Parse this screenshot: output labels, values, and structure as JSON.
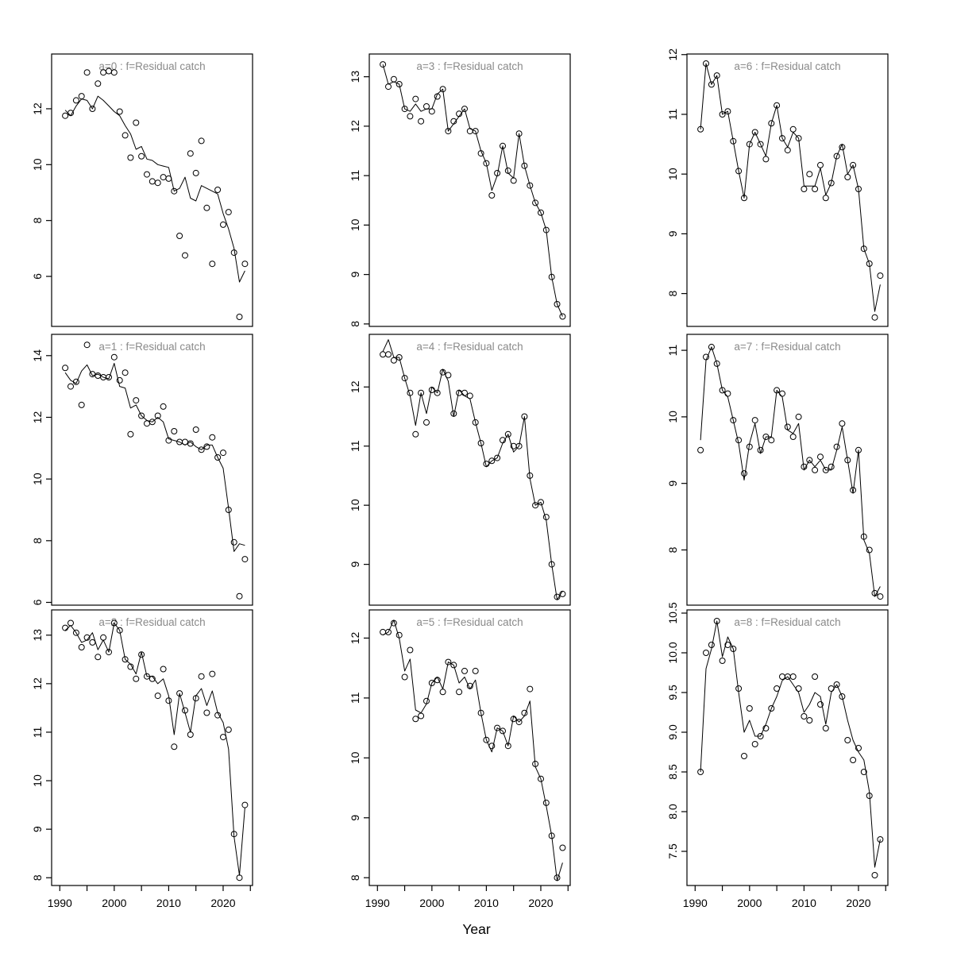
{
  "figure": {
    "xlabel": "Year",
    "background": "#ffffff",
    "axis_color": "#000000",
    "title_color": "#8a8a8a",
    "marker": "open-circle",
    "x_axis": {
      "lim": [
        1988.5,
        2025.4
      ],
      "major_ticks": [
        1990,
        2000,
        2010,
        2020
      ],
      "major_tick_labels": [
        "1990",
        "2000",
        "2010",
        "2020"
      ],
      "minor_ticks": [
        1995,
        2005,
        2015,
        2025
      ],
      "labels_on_bottom_row_only": true
    },
    "years": [
      1991,
      1992,
      1993,
      1994,
      1995,
      1996,
      1997,
      1998,
      1999,
      2000,
      2001,
      2002,
      2003,
      2004,
      2005,
      2006,
      2007,
      2008,
      2009,
      2010,
      2011,
      2012,
      2013,
      2014,
      2015,
      2016,
      2017,
      2018,
      2019,
      2020,
      2021,
      2022,
      2023,
      2024
    ]
  },
  "chart_data": [
    {
      "id": "a0",
      "type": "line",
      "title": "a=0 : f=Residual catch",
      "row": 0,
      "col": 0,
      "ylim": [
        4.21,
        13.96
      ],
      "yticks": [
        6,
        8,
        10,
        12
      ],
      "ytick_labels": [
        "6",
        "8",
        "10",
        "12"
      ],
      "series": [
        {
          "name": "observed",
          "values": [
            11.75,
            11.85,
            12.3,
            12.45,
            13.3,
            12.0,
            12.9,
            13.3,
            13.35,
            13.3,
            11.9,
            11.05,
            10.25,
            11.5,
            10.3,
            9.65,
            9.4,
            9.35,
            9.55,
            9.5,
            9.05,
            7.45,
            6.75,
            10.4,
            9.7,
            10.85,
            8.45,
            6.45,
            9.1,
            7.85,
            8.3,
            6.85,
            4.55,
            6.45
          ]
        },
        {
          "name": "fitted",
          "values": [
            11.95,
            11.75,
            12.1,
            12.35,
            12.3,
            12.0,
            12.45,
            12.3,
            12.1,
            11.9,
            11.75,
            11.4,
            11.1,
            10.55,
            10.65,
            10.2,
            10.15,
            10.0,
            9.95,
            9.9,
            9.05,
            9.15,
            9.55,
            8.8,
            8.7,
            9.25,
            9.15,
            9.05,
            8.95,
            8.25,
            7.7,
            7.0,
            5.8,
            6.2
          ]
        }
      ]
    },
    {
      "id": "a3",
      "type": "line",
      "title": "a=3 : f=Residual catch",
      "row": 0,
      "col": 1,
      "ylim": [
        7.95,
        13.46
      ],
      "yticks": [
        8,
        9,
        10,
        11,
        12,
        13
      ],
      "ytick_labels": [
        "8",
        "9",
        "10",
        "11",
        "12",
        "13"
      ],
      "series": [
        {
          "name": "observed",
          "values": [
            13.25,
            12.8,
            12.95,
            12.85,
            12.35,
            12.2,
            12.55,
            12.1,
            12.4,
            12.3,
            12.6,
            12.75,
            11.9,
            12.1,
            12.25,
            12.35,
            11.9,
            11.9,
            11.45,
            11.25,
            10.6,
            11.05,
            11.6,
            11.1,
            10.9,
            11.85,
            11.2,
            10.8,
            10.45,
            10.25,
            9.9,
            8.95,
            8.4,
            8.15
          ]
        },
        {
          "name": "fitted",
          "values": [
            13.25,
            12.85,
            12.9,
            12.85,
            12.35,
            12.3,
            12.45,
            12.3,
            12.35,
            12.35,
            12.65,
            12.75,
            11.9,
            12.05,
            12.2,
            12.35,
            11.95,
            11.9,
            11.5,
            11.25,
            10.7,
            11.0,
            11.6,
            11.05,
            10.95,
            11.85,
            11.2,
            10.8,
            10.45,
            10.25,
            9.9,
            8.95,
            8.4,
            8.15
          ]
        }
      ]
    },
    {
      "id": "a6",
      "type": "line",
      "title": "a=6 : f=Residual catch",
      "row": 0,
      "col": 2,
      "ylim": [
        7.45,
        12.01
      ],
      "yticks": [
        8,
        9,
        10,
        11,
        12
      ],
      "ytick_labels": [
        "8",
        "9",
        "10",
        "11",
        "12"
      ],
      "series": [
        {
          "name": "observed",
          "values": [
            10.75,
            11.85,
            11.5,
            11.65,
            11.0,
            11.05,
            10.55,
            10.05,
            9.6,
            10.5,
            10.7,
            10.5,
            10.25,
            10.85,
            11.15,
            10.6,
            10.4,
            10.75,
            10.6,
            9.75,
            10.0,
            9.75,
            10.15,
            9.6,
            9.85,
            10.3,
            10.45,
            9.95,
            10.15,
            9.75,
            8.75,
            8.5,
            7.6,
            8.3
          ]
        },
        {
          "name": "fitted",
          "values": [
            10.75,
            11.85,
            11.5,
            11.65,
            11.0,
            11.05,
            10.55,
            10.05,
            9.6,
            10.5,
            10.7,
            10.5,
            10.3,
            10.85,
            11.15,
            10.6,
            10.45,
            10.7,
            10.6,
            9.8,
            9.8,
            9.8,
            10.1,
            9.65,
            9.85,
            10.3,
            10.5,
            10.0,
            10.15,
            9.75,
            8.75,
            8.5,
            7.7,
            8.15
          ]
        }
      ]
    },
    {
      "id": "a1",
      "type": "line",
      "title": "a=1 : f=Residual catch",
      "row": 1,
      "col": 0,
      "ylim": [
        5.91,
        14.69
      ],
      "yticks": [
        6,
        8,
        10,
        12,
        14
      ],
      "ytick_labels": [
        "6",
        "8",
        "10",
        "12",
        "14"
      ],
      "series": [
        {
          "name": "observed",
          "values": [
            13.6,
            13.0,
            13.15,
            12.4,
            14.35,
            13.4,
            13.35,
            13.3,
            13.3,
            13.95,
            13.2,
            13.45,
            11.45,
            12.55,
            12.05,
            11.8,
            11.85,
            12.05,
            12.35,
            11.25,
            11.55,
            11.2,
            11.2,
            11.15,
            11.6,
            10.95,
            11.05,
            11.35,
            10.7,
            10.85,
            9.0,
            7.95,
            6.2,
            7.4
          ]
        },
        {
          "name": "fitted",
          "values": [
            13.45,
            13.2,
            13.1,
            13.5,
            13.7,
            13.35,
            13.4,
            13.3,
            13.25,
            13.75,
            13.0,
            12.95,
            12.3,
            12.4,
            12.05,
            11.9,
            11.85,
            12.0,
            11.85,
            11.3,
            11.25,
            11.2,
            11.1,
            11.2,
            11.05,
            10.95,
            11.1,
            11.1,
            10.7,
            10.35,
            9.05,
            7.65,
            7.9,
            7.85
          ]
        }
      ]
    },
    {
      "id": "a4",
      "type": "line",
      "title": "a=4 : f=Residual catch",
      "row": 1,
      "col": 1,
      "ylim": [
        8.31,
        12.89
      ],
      "yticks": [
        9,
        10,
        11,
        12
      ],
      "ytick_labels": [
        "9",
        "10",
        "11",
        "12"
      ],
      "series": [
        {
          "name": "observed",
          "values": [
            12.55,
            12.55,
            12.45,
            12.5,
            12.15,
            11.9,
            11.2,
            11.9,
            11.4,
            11.95,
            11.9,
            12.25,
            12.2,
            11.55,
            11.9,
            11.9,
            11.85,
            11.4,
            11.05,
            10.7,
            10.75,
            10.8,
            11.1,
            11.2,
            11.0,
            11.0,
            11.5,
            10.5,
            10.0,
            10.05,
            9.8,
            9.0,
            8.45,
            8.5
          ]
        },
        {
          "name": "fitted",
          "values": [
            12.6,
            12.8,
            12.5,
            12.5,
            12.15,
            11.85,
            11.35,
            11.9,
            11.55,
            12.0,
            11.9,
            12.3,
            12.1,
            11.5,
            11.95,
            11.85,
            11.8,
            11.4,
            11.05,
            10.65,
            10.75,
            10.8,
            11.05,
            11.2,
            10.9,
            11.0,
            11.5,
            10.45,
            10.0,
            10.05,
            9.75,
            9.0,
            8.4,
            8.55
          ]
        }
      ]
    },
    {
      "id": "a7",
      "type": "line",
      "title": "a=7 : f=Residual catch",
      "row": 1,
      "col": 2,
      "ylim": [
        7.17,
        11.24
      ],
      "yticks": [
        8,
        9,
        10,
        11
      ],
      "ytick_labels": [
        "8",
        "9",
        "10",
        "11"
      ],
      "series": [
        {
          "name": "observed",
          "values": [
            9.5,
            10.9,
            11.05,
            10.8,
            10.4,
            10.35,
            9.95,
            9.65,
            9.15,
            9.55,
            9.95,
            9.5,
            9.7,
            9.65,
            10.4,
            10.35,
            9.85,
            9.7,
            10.0,
            9.25,
            9.35,
            9.2,
            9.4,
            9.2,
            9.25,
            9.55,
            9.9,
            9.35,
            8.9,
            9.5,
            8.2,
            8.0,
            7.35,
            7.3
          ]
        },
        {
          "name": "fitted",
          "values": [
            9.65,
            10.85,
            11.05,
            10.8,
            10.4,
            10.3,
            9.95,
            9.6,
            9.05,
            9.6,
            9.9,
            9.45,
            9.7,
            9.7,
            10.4,
            10.3,
            9.8,
            9.75,
            9.9,
            9.2,
            9.35,
            9.25,
            9.35,
            9.2,
            9.2,
            9.5,
            9.85,
            9.35,
            8.85,
            9.5,
            8.15,
            7.95,
            7.3,
            7.45
          ]
        }
      ]
    },
    {
      "id": "a2",
      "type": "line",
      "title": "a=2 : f=Residual catch",
      "row": 2,
      "col": 0,
      "ylim": [
        7.84,
        13.52
      ],
      "yticks": [
        8,
        9,
        10,
        11,
        12,
        13
      ],
      "ytick_labels": [
        "8",
        "9",
        "10",
        "11",
        "12",
        "13"
      ],
      "series": [
        {
          "name": "observed",
          "values": [
            13.15,
            13.25,
            13.05,
            12.75,
            12.95,
            12.85,
            12.55,
            12.95,
            12.65,
            13.25,
            13.1,
            12.5,
            12.35,
            12.1,
            12.6,
            12.15,
            12.1,
            11.75,
            12.3,
            11.65,
            10.7,
            11.8,
            11.45,
            10.95,
            11.7,
            12.15,
            11.4,
            12.2,
            11.35,
            10.9,
            11.05,
            8.9,
            8.0,
            9.5
          ]
        },
        {
          "name": "fitted",
          "values": [
            13.1,
            13.2,
            13.05,
            12.85,
            12.9,
            13.05,
            12.7,
            12.9,
            12.65,
            13.25,
            13.1,
            12.5,
            12.4,
            12.2,
            12.65,
            12.15,
            12.15,
            12.0,
            12.1,
            11.75,
            10.95,
            11.8,
            11.4,
            11.0,
            11.75,
            11.9,
            11.55,
            11.85,
            11.4,
            11.2,
            10.65,
            8.85,
            8.05,
            9.45
          ]
        }
      ]
    },
    {
      "id": "a5",
      "type": "line",
      "title": "a=5 : f=Residual catch",
      "row": 2,
      "col": 1,
      "ylim": [
        7.87,
        12.47
      ],
      "yticks": [
        8,
        9,
        10,
        11,
        12
      ],
      "ytick_labels": [
        "8",
        "9",
        "10",
        "11",
        "12"
      ],
      "series": [
        {
          "name": "observed",
          "values": [
            12.1,
            12.1,
            12.25,
            12.05,
            11.35,
            11.8,
            10.65,
            10.7,
            10.95,
            11.25,
            11.3,
            11.1,
            11.6,
            11.55,
            11.1,
            11.45,
            11.2,
            11.45,
            10.75,
            10.3,
            10.2,
            10.5,
            10.45,
            10.2,
            10.65,
            10.6,
            10.75,
            11.15,
            9.9,
            9.65,
            9.25,
            8.7,
            8.0,
            8.5
          ]
        },
        {
          "name": "fitted",
          "values": [
            12.05,
            12.1,
            12.3,
            12.0,
            11.45,
            11.65,
            10.8,
            10.75,
            10.9,
            11.25,
            11.35,
            11.15,
            11.6,
            11.55,
            11.25,
            11.35,
            11.15,
            11.3,
            10.75,
            10.3,
            10.1,
            10.5,
            10.45,
            10.2,
            10.7,
            10.6,
            10.7,
            10.95,
            9.85,
            9.65,
            9.2,
            8.7,
            7.95,
            8.25
          ]
        }
      ]
    },
    {
      "id": "a8",
      "type": "line",
      "title": "a=8 : f=Residual catch",
      "row": 2,
      "col": 2,
      "ylim": [
        7.07,
        10.54
      ],
      "yticks": [
        7.5,
        8,
        8.5,
        9,
        9.5,
        10,
        10.5
      ],
      "ytick_labels": [
        "7.5",
        "8.0",
        "8.5",
        "9.0",
        "9.5",
        "10.0",
        "10.5"
      ],
      "series": [
        {
          "name": "observed",
          "values": [
            8.5,
            10.0,
            10.1,
            10.4,
            9.9,
            10.1,
            10.05,
            9.55,
            8.7,
            9.3,
            8.85,
            8.95,
            9.05,
            9.3,
            9.55,
            9.7,
            9.7,
            9.7,
            9.55,
            9.2,
            9.15,
            9.7,
            9.35,
            9.05,
            9.55,
            9.6,
            9.45,
            8.9,
            8.65,
            8.8,
            8.5,
            8.2,
            7.2,
            7.65
          ]
        },
        {
          "name": "fitted",
          "values": [
            8.5,
            9.8,
            10.05,
            10.4,
            9.95,
            10.2,
            10.05,
            9.5,
            9.0,
            9.15,
            8.95,
            8.95,
            9.1,
            9.3,
            9.45,
            9.65,
            9.7,
            9.6,
            9.5,
            9.25,
            9.35,
            9.5,
            9.45,
            9.1,
            9.5,
            9.6,
            9.45,
            9.15,
            8.9,
            8.75,
            8.65,
            8.25,
            7.3,
            7.65
          ]
        }
      ]
    }
  ]
}
